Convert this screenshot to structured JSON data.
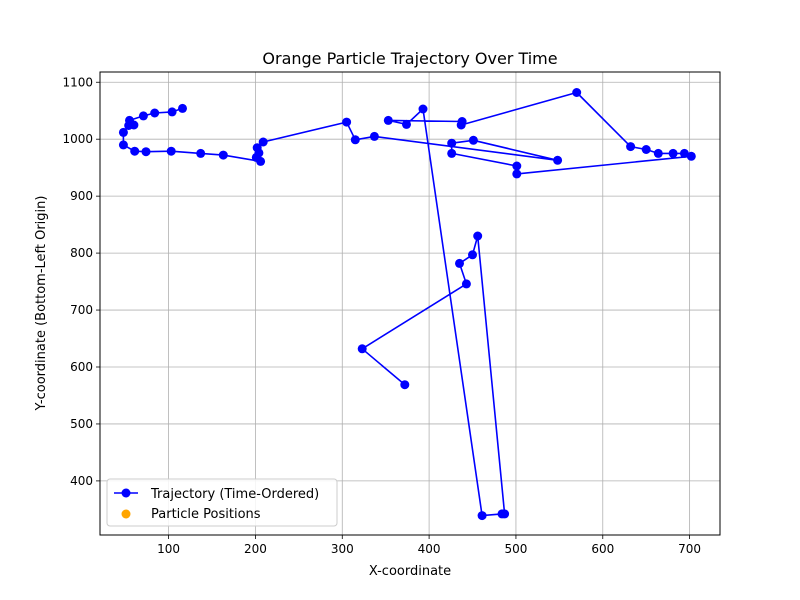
{
  "chart_data": {
    "type": "line",
    "title": "Orange Particle Trajectory Over Time",
    "xlabel": "X-coordinate",
    "ylabel": "Y-coordinate (Bottom-Left Origin)",
    "xlim": [
      21,
      735
    ],
    "ylim": [
      305,
      1118
    ],
    "xticks": [
      100,
      200,
      300,
      400,
      500,
      600,
      700
    ],
    "yticks": [
      400,
      500,
      600,
      700,
      800,
      900,
      1000,
      1100
    ],
    "grid": true,
    "legend_position": "lower-left",
    "series": [
      {
        "name": "Trajectory (Time-Ordered)",
        "color": "#0000ff",
        "marker": "circle",
        "points": [
          [
            372,
            569
          ],
          [
            323,
            632
          ],
          [
            443,
            746
          ],
          [
            435,
            782
          ],
          [
            450,
            797
          ],
          [
            456,
            830
          ],
          [
            487,
            342
          ],
          [
            484,
            342
          ],
          [
            461,
            339
          ],
          [
            393,
            1053
          ],
          [
            374,
            1026
          ],
          [
            353,
            1033
          ],
          [
            438,
            1031
          ],
          [
            437,
            1025
          ],
          [
            570,
            1082
          ],
          [
            632,
            987
          ],
          [
            650,
            982
          ],
          [
            664,
            975
          ],
          [
            681,
            975
          ],
          [
            694,
            975
          ],
          [
            702,
            970
          ],
          [
            501,
            939
          ],
          [
            501,
            953
          ],
          [
            426,
            975
          ],
          [
            426,
            993
          ],
          [
            451,
            998
          ],
          [
            548,
            963
          ],
          [
            337,
            1005
          ],
          [
            315,
            999
          ],
          [
            305,
            1030
          ],
          [
            209,
            995
          ],
          [
            202,
            985
          ],
          [
            204,
            976
          ],
          [
            201,
            968
          ],
          [
            206,
            961
          ],
          [
            163,
            972
          ],
          [
            137,
            975
          ],
          [
            103,
            979
          ],
          [
            74,
            978
          ],
          [
            61,
            979
          ],
          [
            48,
            990
          ],
          [
            48,
            1012
          ],
          [
            54,
            1024
          ],
          [
            60,
            1025
          ],
          [
            55,
            1033
          ],
          [
            71,
            1041
          ],
          [
            84,
            1046
          ],
          [
            104,
            1048
          ],
          [
            116,
            1054
          ]
        ]
      },
      {
        "name": "Particle Positions",
        "color": "#ffa500",
        "marker": "circle"
      }
    ]
  }
}
